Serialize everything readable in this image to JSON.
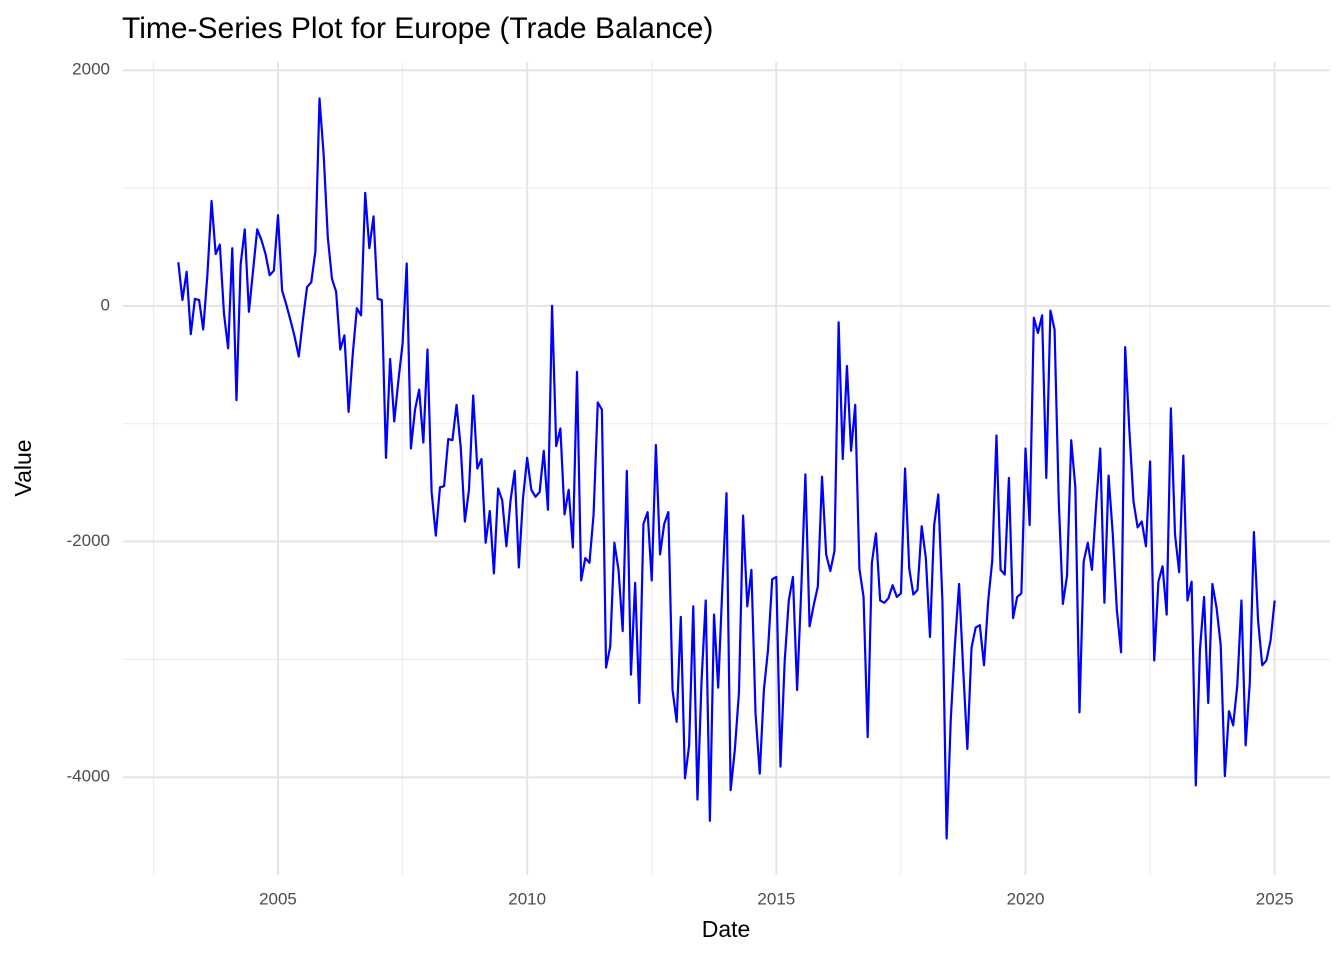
{
  "chart_data": {
    "type": "line",
    "title": "Time-Series Plot for Europe (Trade Balance)",
    "x_label": "Date",
    "y_label": "Value",
    "xlim": [
      2001.89,
      2026.11
    ],
    "ylim": [
      -4830,
      2070
    ],
    "xticks": [
      2005,
      2010,
      2015,
      2020,
      2025
    ],
    "yticks": [
      -4000,
      -2000,
      0,
      2000
    ],
    "grid": true,
    "x": [
      2003,
      2003.083,
      2003.167,
      2003.25,
      2003.333,
      2003.417,
      2003.5,
      2003.583,
      2003.667,
      2003.75,
      2003.833,
      2003.917,
      2004,
      2004.083,
      2004.167,
      2004.25,
      2004.333,
      2004.417,
      2004.5,
      2004.583,
      2004.667,
      2004.75,
      2004.833,
      2004.917,
      2005,
      2005.083,
      2005.167,
      2005.25,
      2005.333,
      2005.417,
      2005.5,
      2005.583,
      2005.667,
      2005.75,
      2005.833,
      2005.917,
      2006,
      2006.083,
      2006.167,
      2006.25,
      2006.333,
      2006.417,
      2006.5,
      2006.583,
      2006.667,
      2006.75,
      2006.833,
      2006.917,
      2007,
      2007.083,
      2007.167,
      2007.25,
      2007.333,
      2007.417,
      2007.5,
      2007.583,
      2007.667,
      2007.75,
      2007.833,
      2007.917,
      2008,
      2008.083,
      2008.167,
      2008.25,
      2008.333,
      2008.417,
      2008.5,
      2008.583,
      2008.667,
      2008.75,
      2008.833,
      2008.917,
      2009,
      2009.083,
      2009.167,
      2009.25,
      2009.333,
      2009.417,
      2009.5,
      2009.583,
      2009.667,
      2009.75,
      2009.833,
      2009.917,
      2010,
      2010.083,
      2010.167,
      2010.25,
      2010.333,
      2010.417,
      2010.5,
      2010.583,
      2010.667,
      2010.75,
      2010.833,
      2010.917,
      2011,
      2011.083,
      2011.167,
      2011.25,
      2011.333,
      2011.417,
      2011.5,
      2011.583,
      2011.667,
      2011.75,
      2011.833,
      2011.917,
      2012,
      2012.083,
      2012.167,
      2012.25,
      2012.333,
      2012.417,
      2012.5,
      2012.583,
      2012.667,
      2012.75,
      2012.833,
      2012.917,
      2013,
      2013.083,
      2013.167,
      2013.25,
      2013.333,
      2013.417,
      2013.5,
      2013.583,
      2013.667,
      2013.75,
      2013.833,
      2013.917,
      2014,
      2014.083,
      2014.167,
      2014.25,
      2014.333,
      2014.417,
      2014.5,
      2014.583,
      2014.667,
      2014.75,
      2014.833,
      2014.917,
      2015,
      2015.083,
      2015.167,
      2015.25,
      2015.333,
      2015.417,
      2015.5,
      2015.583,
      2015.667,
      2015.75,
      2015.833,
      2015.917,
      2016,
      2016.083,
      2016.167,
      2016.25,
      2016.333,
      2016.417,
      2016.5,
      2016.583,
      2016.667,
      2016.75,
      2016.833,
      2016.917,
      2017,
      2017.083,
      2017.167,
      2017.25,
      2017.333,
      2017.417,
      2017.5,
      2017.583,
      2017.667,
      2017.75,
      2017.833,
      2017.917,
      2018,
      2018.083,
      2018.167,
      2018.25,
      2018.333,
      2018.417,
      2018.5,
      2018.583,
      2018.667,
      2018.75,
      2018.833,
      2018.917,
      2019,
      2019.083,
      2019.167,
      2019.25,
      2019.333,
      2019.417,
      2019.5,
      2019.583,
      2019.667,
      2019.75,
      2019.833,
      2019.917,
      2020,
      2020.083,
      2020.167,
      2020.25,
      2020.333,
      2020.417,
      2020.5,
      2020.583,
      2020.667,
      2020.75,
      2020.833,
      2020.917,
      2021,
      2021.083,
      2021.167,
      2021.25,
      2021.333,
      2021.417,
      2021.5,
      2021.583,
      2021.667,
      2021.75,
      2021.833,
      2021.917,
      2022,
      2022.083,
      2022.167,
      2022.25,
      2022.333,
      2022.417,
      2022.5,
      2022.583,
      2022.667,
      2022.75,
      2022.833,
      2022.917,
      2023,
      2023.083,
      2023.167,
      2023.25,
      2023.333,
      2023.417,
      2023.5,
      2023.583,
      2023.667,
      2023.75,
      2023.833,
      2023.917,
      2024,
      2024.083,
      2024.167,
      2024.25,
      2024.333,
      2024.417,
      2024.5,
      2024.583,
      2024.667,
      2024.75,
      2024.833,
      2024.917,
      2025
    ],
    "series": [
      {
        "color": "#0000ff",
        "values": [
          370,
          50,
          290,
          -240,
          60,
          50,
          -200,
          260,
          890,
          440,
          520,
          -70,
          -360,
          490,
          -800,
          350,
          650,
          -50,
          300,
          650,
          560,
          440,
          260,
          300,
          770,
          130,
          10,
          -120,
          -260,
          -430,
          -120,
          160,
          200,
          460,
          1760,
          1280,
          580,
          230,
          120,
          -370,
          -250,
          -900,
          -410,
          -20,
          -80,
          960,
          490,
          760,
          60,
          50,
          -1290,
          -450,
          -980,
          -630,
          -320,
          360,
          -1210,
          -880,
          -710,
          -1160,
          -370,
          -1580,
          -1950,
          -1540,
          -1530,
          -1130,
          -1140,
          -840,
          -1200,
          -1830,
          -1560,
          -760,
          -1380,
          -1300,
          -2010,
          -1740,
          -2270,
          -1550,
          -1650,
          -2040,
          -1650,
          -1400,
          -2220,
          -1630,
          -1290,
          -1560,
          -1620,
          -1580,
          -1230,
          -1730,
          0,
          -1190,
          -1040,
          -1770,
          -1560,
          -2050,
          -560,
          -2330,
          -2140,
          -2180,
          -1770,
          -820,
          -880,
          -3070,
          -2890,
          -2010,
          -2240,
          -2760,
          -1400,
          -3130,
          -2350,
          -3370,
          -1850,
          -1750,
          -2330,
          -1180,
          -2110,
          -1850,
          -1750,
          -3260,
          -3530,
          -2640,
          -4010,
          -3730,
          -2550,
          -4190,
          -3180,
          -2500,
          -4370,
          -2620,
          -3240,
          -2390,
          -1590,
          -4110,
          -3770,
          -3280,
          -1780,
          -2550,
          -2240,
          -3460,
          -3970,
          -3260,
          -2920,
          -2320,
          -2300,
          -3910,
          -3020,
          -2500,
          -2300,
          -3260,
          -2410,
          -1430,
          -2720,
          -2540,
          -2380,
          -1450,
          -2110,
          -2250,
          -2080,
          -140,
          -1300,
          -510,
          -1230,
          -840,
          -2230,
          -2470,
          -3660,
          -2180,
          -1930,
          -2500,
          -2520,
          -2480,
          -2370,
          -2470,
          -2440,
          -1380,
          -2230,
          -2450,
          -2410,
          -1870,
          -2140,
          -2810,
          -1860,
          -1600,
          -2510,
          -4520,
          -3510,
          -2880,
          -2360,
          -3090,
          -3760,
          -2900,
          -2730,
          -2710,
          -3050,
          -2510,
          -2160,
          -1100,
          -2240,
          -2280,
          -1460,
          -2650,
          -2470,
          -2440,
          -1210,
          -1860,
          -100,
          -230,
          -80,
          -1460,
          -40,
          -200,
          -1650,
          -2530,
          -2290,
          -1140,
          -1540,
          -3450,
          -2170,
          -2010,
          -2240,
          -1690,
          -1210,
          -2520,
          -1440,
          -1930,
          -2580,
          -2940,
          -350,
          -1050,
          -1660,
          -1880,
          -1830,
          -2040,
          -1320,
          -3010,
          -2340,
          -2210,
          -2620,
          -870,
          -1940,
          -2260,
          -1270,
          -2500,
          -2340,
          -4070,
          -2920,
          -2470,
          -3370,
          -2360,
          -2560,
          -2880,
          -3990,
          -3440,
          -3560,
          -3220,
          -2500,
          -3730,
          -3200,
          -1920,
          -2670,
          -3050,
          -3010,
          -2840,
          -2500
        ]
      }
    ]
  }
}
